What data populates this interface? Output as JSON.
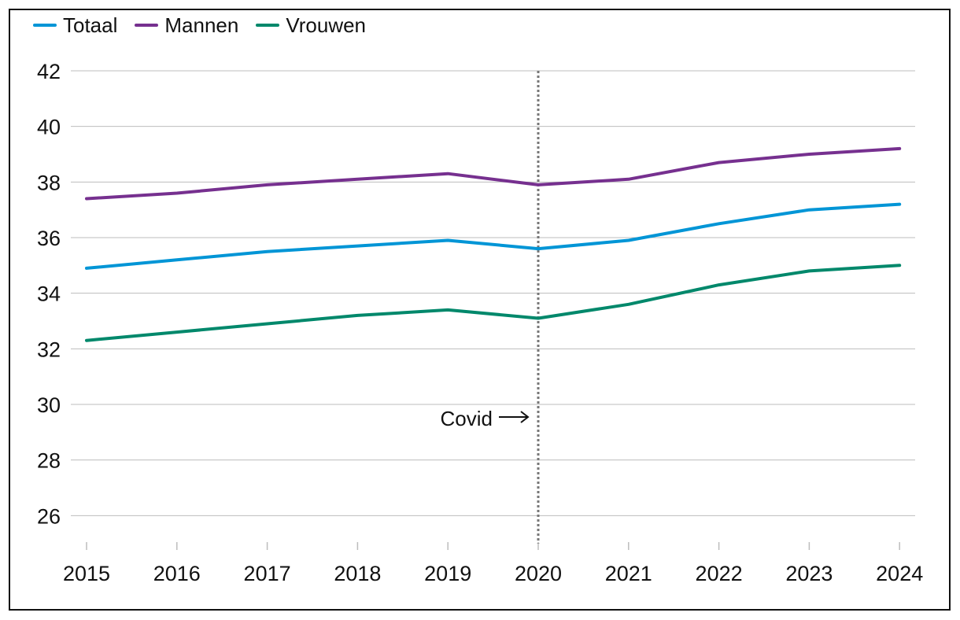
{
  "chart_data": {
    "type": "line",
    "x": [
      "2015",
      "2016",
      "2017",
      "2018",
      "2019",
      "2020",
      "2021",
      "2022",
      "2023",
      "2024"
    ],
    "series": [
      {
        "name": "Totaal",
        "color": "#0095d6",
        "values": [
          34.9,
          35.2,
          35.5,
          35.7,
          35.9,
          35.6,
          35.9,
          36.5,
          37.0,
          37.2
        ]
      },
      {
        "name": "Mannen",
        "color": "#76308f",
        "values": [
          37.4,
          37.6,
          37.9,
          38.1,
          38.3,
          37.9,
          38.1,
          38.7,
          39.0,
          39.2
        ]
      },
      {
        "name": "Vrouwen",
        "color": "#00886b",
        "values": [
          32.3,
          32.6,
          32.9,
          33.2,
          33.4,
          33.1,
          33.6,
          34.3,
          34.8,
          35.0
        ]
      }
    ],
    "ylim": [
      25,
      42
    ],
    "yticks": [
      26,
      28,
      30,
      32,
      34,
      36,
      38,
      40,
      42
    ],
    "grid": true,
    "legend": "top-left",
    "annotation": {
      "text": "Covid",
      "x": "2020",
      "line_style": "dotted",
      "line_color": "#777777"
    },
    "title": "",
    "xlabel": "",
    "ylabel": ""
  }
}
